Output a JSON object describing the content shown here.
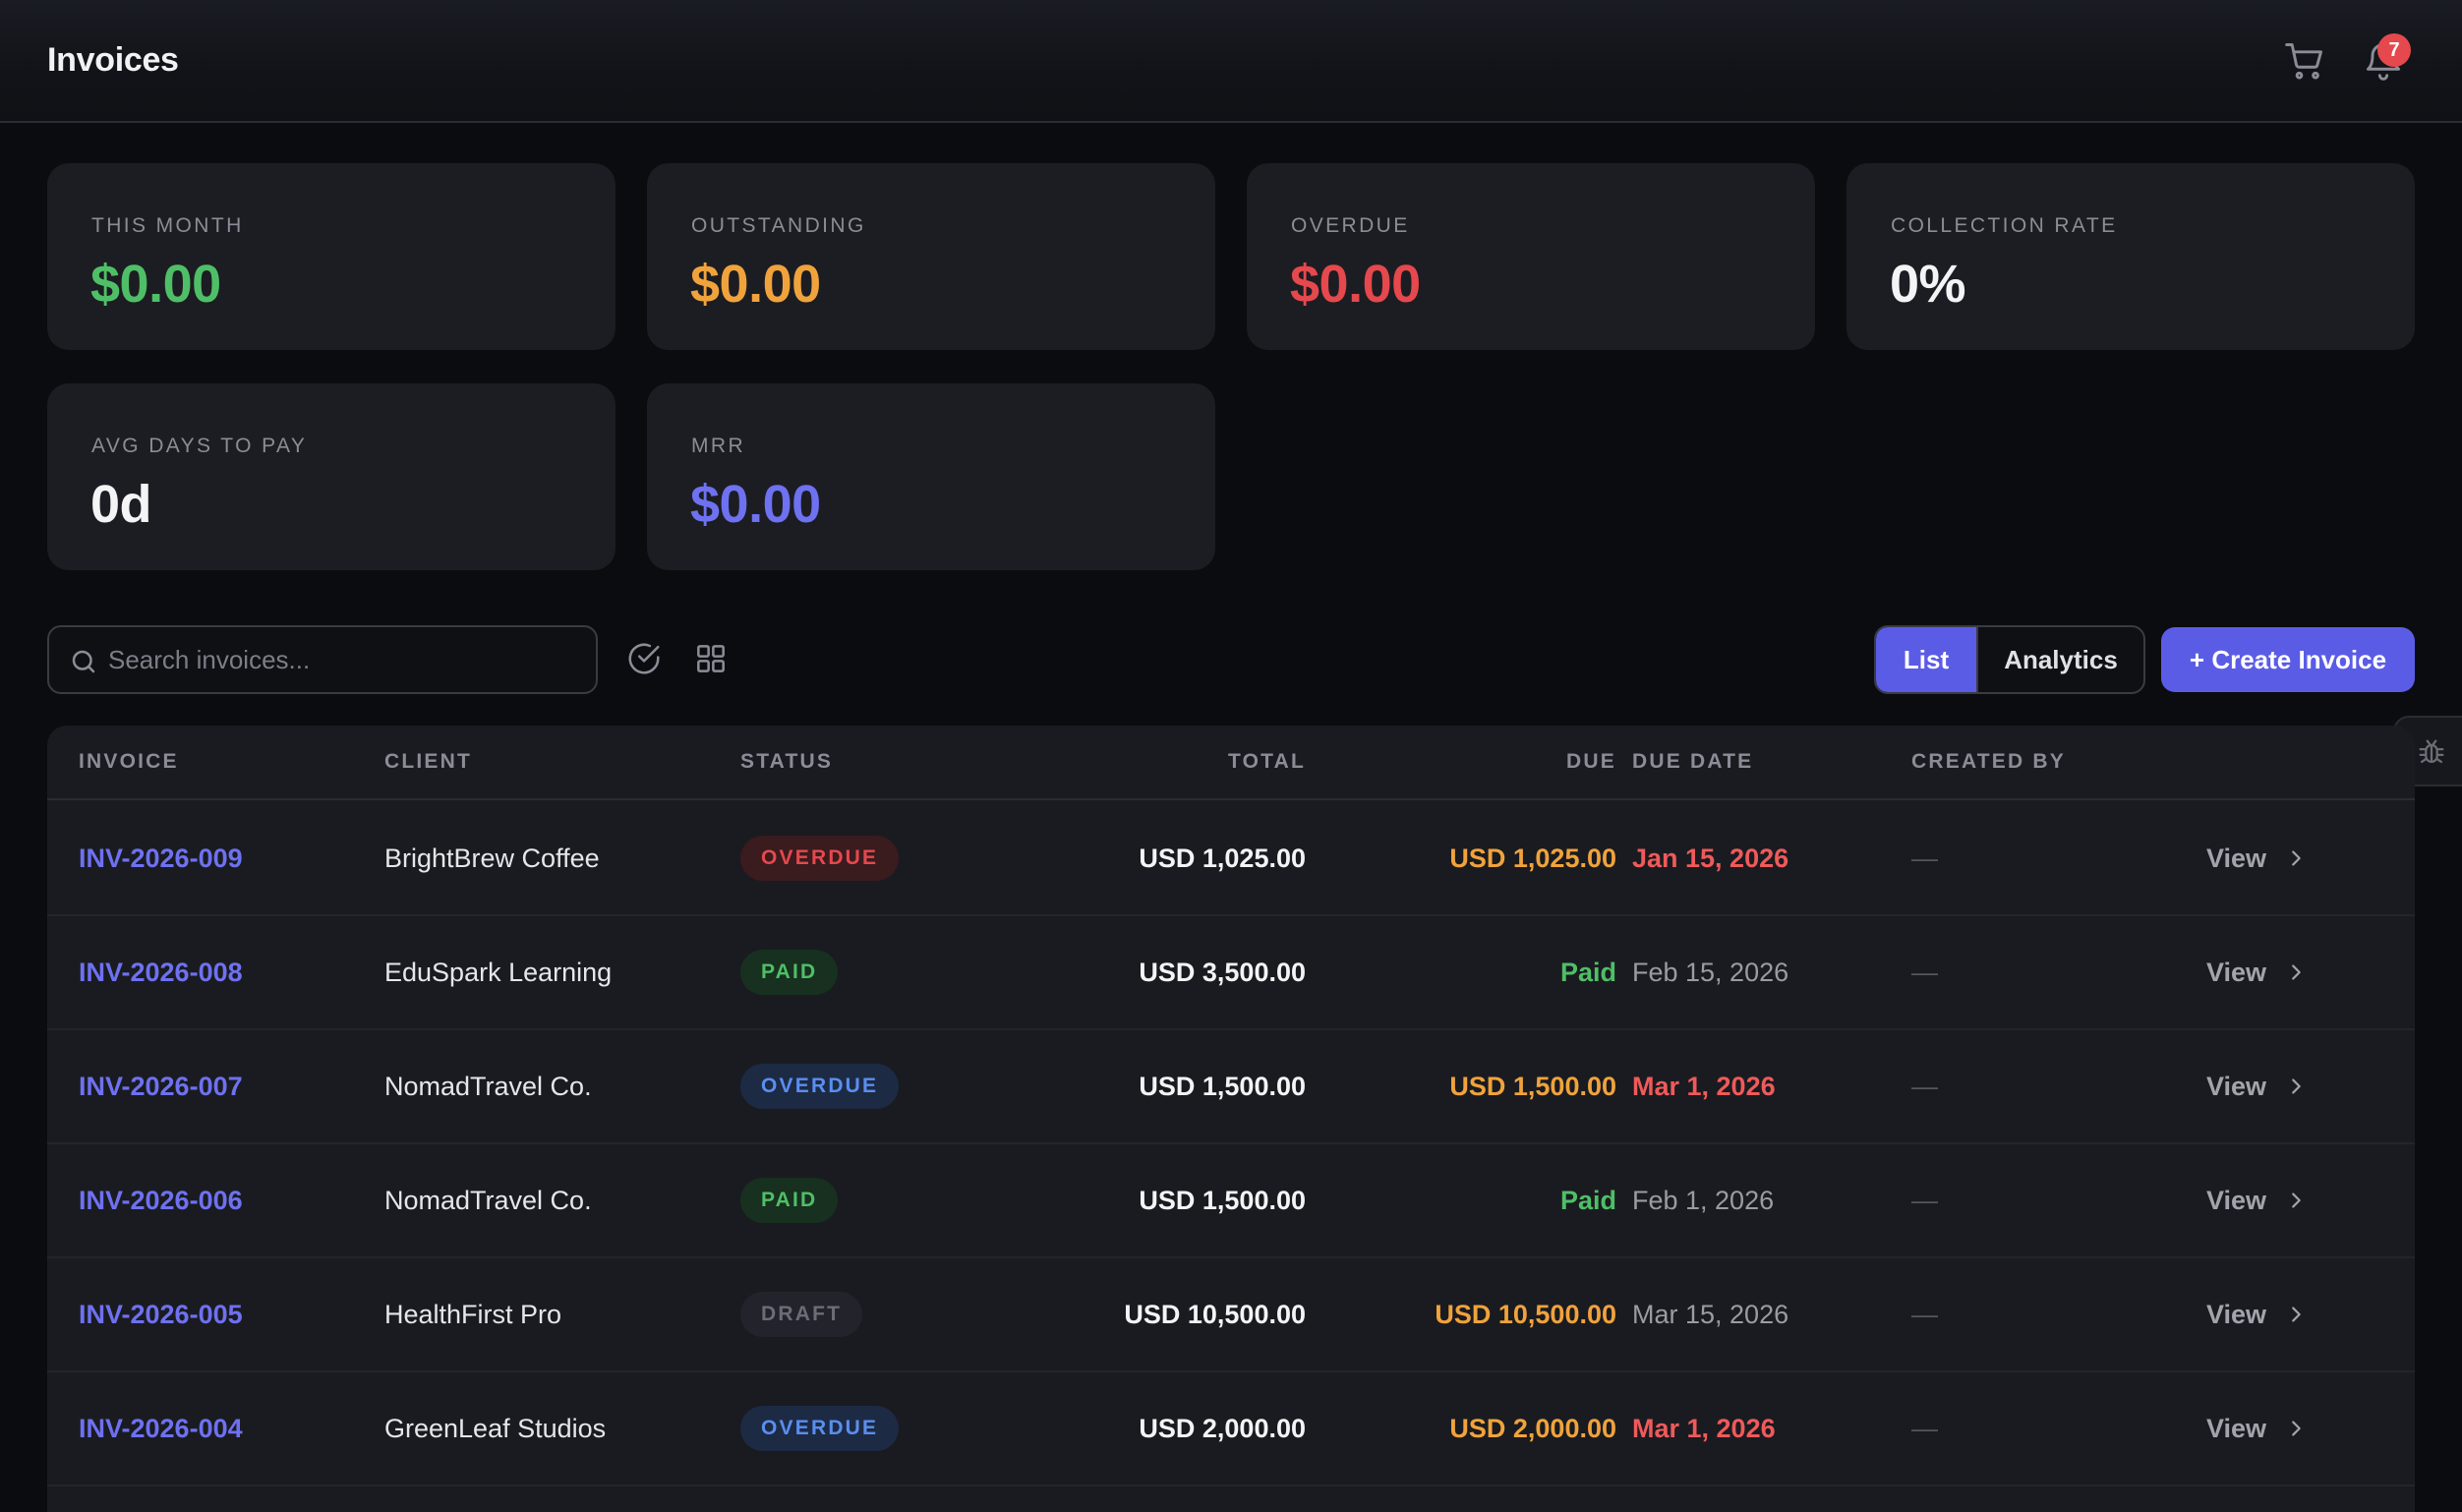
{
  "header": {
    "title": "Invoices",
    "notification_count": "7",
    "icons": [
      "cart-icon",
      "bell-icon"
    ]
  },
  "stats": [
    {
      "label": "THIS MONTH",
      "value": "$0.00",
      "color": "#4fbf67"
    },
    {
      "label": "OUTSTANDING",
      "value": "$0.00",
      "color": "#f0a33c"
    },
    {
      "label": "OVERDUE",
      "value": "$0.00",
      "color": "#e5484d"
    },
    {
      "label": "COLLECTION RATE",
      "value": "0%",
      "color": "#f4f4f6"
    },
    {
      "label": "AVG DAYS TO PAY",
      "value": "0d",
      "color": "#f4f4f6"
    },
    {
      "label": "MRR",
      "value": "$0.00",
      "color": "#6e71f0"
    }
  ],
  "toolbar": {
    "search_placeholder": "Search invoices...",
    "search_value": "",
    "view_list_label": "List",
    "view_analytics_label": "Analytics",
    "active_view": "List",
    "create_label": "+ Create Invoice",
    "accent": "#5b5ce6"
  },
  "table": {
    "columns": [
      "INVOICE",
      "CLIENT",
      "STATUS",
      "TOTAL",
      "DUE",
      "DUE DATE",
      "CREATED BY"
    ],
    "rows": [
      {
        "invoice": "INV-2026-009",
        "client": "BrightBrew Coffee",
        "status": "OVERDUE",
        "status_style": "overdue-red",
        "total": "USD 1,025.00",
        "due": "USD 1,025.00",
        "due_style": "orange",
        "due_date": "Jan 15, 2026",
        "date_style": "red",
        "created_by": "—",
        "action": "View"
      },
      {
        "invoice": "INV-2026-008",
        "client": "EduSpark Learning",
        "status": "PAID",
        "status_style": "paid",
        "total": "USD 3,500.00",
        "due": "Paid",
        "due_style": "green",
        "due_date": "Feb 15, 2026",
        "date_style": "grey",
        "created_by": "—",
        "action": "View"
      },
      {
        "invoice": "INV-2026-007",
        "client": "NomadTravel Co.",
        "status": "OVERDUE",
        "status_style": "overdue-blue",
        "total": "USD 1,500.00",
        "due": "USD 1,500.00",
        "due_style": "orange",
        "due_date": "Mar 1, 2026",
        "date_style": "red",
        "created_by": "—",
        "action": "View"
      },
      {
        "invoice": "INV-2026-006",
        "client": "NomadTravel Co.",
        "status": "PAID",
        "status_style": "paid",
        "total": "USD 1,500.00",
        "due": "Paid",
        "due_style": "green",
        "due_date": "Feb 1, 2026",
        "date_style": "grey",
        "created_by": "—",
        "action": "View"
      },
      {
        "invoice": "INV-2026-005",
        "client": "HealthFirst Pro",
        "status": "DRAFT",
        "status_style": "draft",
        "total": "USD 10,500.00",
        "due": "USD 10,500.00",
        "due_style": "orange",
        "due_date": "Mar 15, 2026",
        "date_style": "grey",
        "created_by": "—",
        "action": "View"
      },
      {
        "invoice": "INV-2026-004",
        "client": "GreenLeaf Studios",
        "status": "OVERDUE",
        "status_style": "overdue-blue",
        "total": "USD 2,000.00",
        "due": "USD 2,000.00",
        "due_style": "orange",
        "due_date": "Mar 1, 2026",
        "date_style": "red",
        "created_by": "—",
        "action": "View"
      }
    ]
  }
}
